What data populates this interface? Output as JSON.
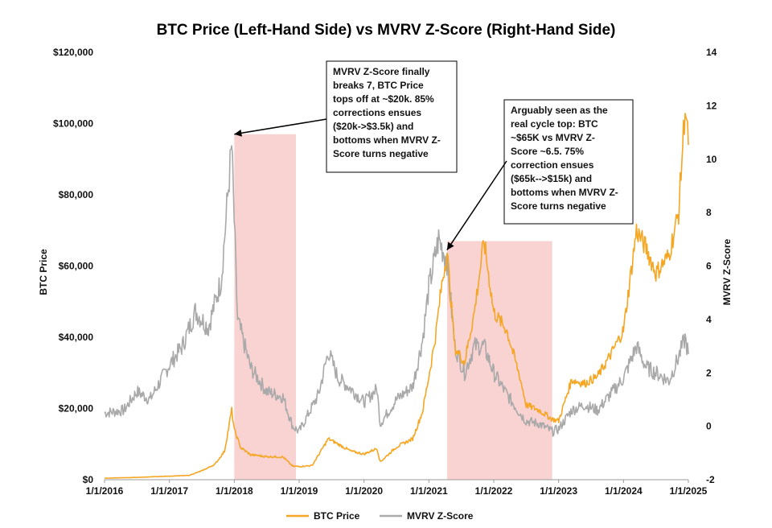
{
  "chart_data": {
    "type": "line",
    "title": "BTC Price (Left-Hand Side) vs MVRV Z-Score (Right-Hand Side)",
    "xlabel": "",
    "ylabel": "BTC Price",
    "y2label": "MVRV Z-Score",
    "x_ticks": [
      "1/1/2016",
      "1/1/2017",
      "1/1/2018",
      "1/1/2019",
      "1/1/2020",
      "1/1/2021",
      "1/1/2022",
      "1/1/2023",
      "1/1/2024",
      "1/1/2025"
    ],
    "xlim": [
      2016.0,
      2025.0
    ],
    "ylim": [
      0,
      120000
    ],
    "y_ticks": [
      "$0",
      "$20,000",
      "$40,000",
      "$60,000",
      "$80,000",
      "$100,000",
      "$120,000"
    ],
    "y2lim": [
      -2,
      14
    ],
    "y2_ticks": [
      "-2",
      "0",
      "2",
      "4",
      "6",
      "8",
      "10",
      "12",
      "14"
    ],
    "grid": false,
    "legend_position": "bottom",
    "series": [
      {
        "name": "BTC Price",
        "axis": "left",
        "color": "#F5A623",
        "x": [
          2016.0,
          2016.5,
          2017.0,
          2017.3,
          2017.5,
          2017.7,
          2017.85,
          2017.96,
          2018.0,
          2018.1,
          2018.25,
          2018.5,
          2018.75,
          2018.9,
          2019.0,
          2019.2,
          2019.45,
          2019.6,
          2019.8,
          2020.0,
          2020.2,
          2020.25,
          2020.5,
          2020.75,
          2020.9,
          2021.0,
          2021.1,
          2021.2,
          2021.28,
          2021.4,
          2021.55,
          2021.7,
          2021.85,
          2022.0,
          2022.2,
          2022.4,
          2022.5,
          2022.7,
          2022.9,
          2023.0,
          2023.2,
          2023.4,
          2023.6,
          2023.8,
          2024.0,
          2024.2,
          2024.35,
          2024.5,
          2024.7,
          2024.85,
          2024.95,
          2025.0
        ],
        "values": [
          430,
          650,
          1000,
          1200,
          2500,
          4300,
          8000,
          19500,
          14000,
          9000,
          7000,
          6500,
          6400,
          3800,
          3700,
          4000,
          11500,
          10000,
          8000,
          7200,
          8800,
          5000,
          9200,
          11500,
          19000,
          29000,
          40000,
          55000,
          64000,
          37000,
          33000,
          47000,
          67000,
          47000,
          42000,
          29000,
          21000,
          19500,
          17000,
          16500,
          28000,
          27000,
          29000,
          35000,
          42000,
          70000,
          65000,
          58000,
          63000,
          75000,
          105000,
          94000
        ]
      },
      {
        "name": "MVRV Z-Score",
        "axis": "right",
        "color": "#A9A9A9",
        "x": [
          2016.0,
          2016.3,
          2016.5,
          2016.7,
          2017.0,
          2017.2,
          2017.4,
          2017.6,
          2017.8,
          2017.96,
          2018.05,
          2018.25,
          2018.5,
          2018.75,
          2018.9,
          2019.0,
          2019.3,
          2019.45,
          2019.6,
          2019.8,
          2020.0,
          2020.2,
          2020.25,
          2020.5,
          2020.75,
          2020.9,
          2021.0,
          2021.15,
          2021.28,
          2021.4,
          2021.55,
          2021.7,
          2021.85,
          2022.0,
          2022.2,
          2022.4,
          2022.5,
          2022.7,
          2022.9,
          2023.0,
          2023.2,
          2023.4,
          2023.6,
          2023.8,
          2024.0,
          2024.2,
          2024.35,
          2024.5,
          2024.7,
          2024.85,
          2024.95,
          2025.0
        ],
        "values": [
          0.5,
          0.6,
          1.3,
          1.0,
          2.3,
          3.0,
          4.3,
          3.7,
          5.5,
          10.5,
          4.0,
          2.2,
          1.3,
          1.1,
          0.0,
          -0.2,
          1.2,
          2.8,
          1.8,
          1.4,
          0.9,
          1.4,
          0.1,
          1.0,
          1.5,
          3.2,
          5.2,
          7.0,
          6.2,
          3.0,
          2.0,
          3.0,
          3.0,
          2.0,
          1.2,
          0.5,
          0.2,
          0.1,
          -0.2,
          -0.1,
          0.6,
          0.8,
          0.6,
          1.2,
          1.8,
          3.0,
          2.2,
          2.0,
          1.7,
          2.6,
          3.3,
          2.7
        ]
      }
    ],
    "shaded_regions": [
      {
        "x_start": 2018.0,
        "x_end": 2018.95,
        "y_top": 97000,
        "color": "#F9D2D2"
      },
      {
        "x_start": 2021.28,
        "x_end": 2022.9,
        "y_top": 67000,
        "color": "#F9D2D2"
      }
    ],
    "annotations": [
      {
        "lines": [
          "MVRV Z-Score finally",
          "breaks 7, BTC Price",
          "tops off at ~$20k. 85%",
          "corrections ensues",
          "($20k->$3.5k) and",
          "bottoms when MVRV Z-",
          "Score turns negative"
        ],
        "arrow_target": {
          "x": 2018.0,
          "y": 97000
        }
      },
      {
        "lines": [
          "Arguably seen as the",
          "real cycle top: BTC",
          "~$65K vs MVRV Z-",
          "Score ~6.5. 75%",
          "correction ensues",
          "($65k-->$15k) and",
          "bottoms when MVRV Z-",
          "Score turns negative"
        ],
        "arrow_target": {
          "x": 2021.28,
          "y": 64500
        }
      }
    ]
  }
}
